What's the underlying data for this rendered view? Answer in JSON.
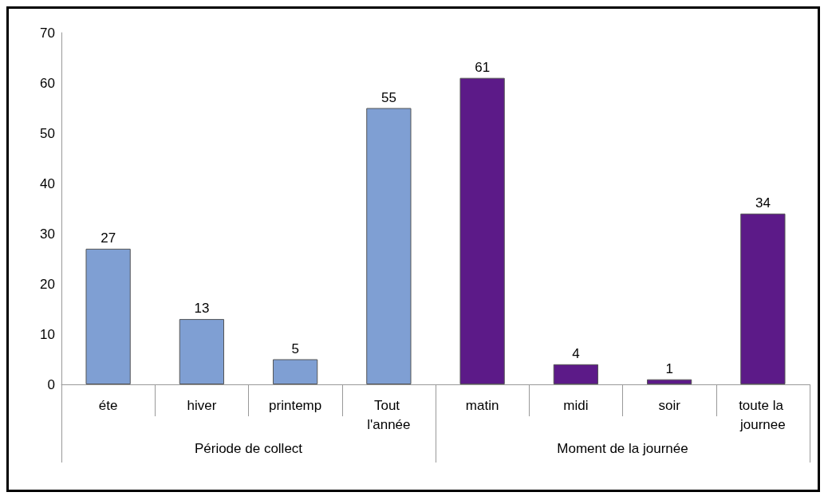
{
  "chart_data": {
    "type": "bar",
    "categories": [
      "éte",
      "hiver",
      "printemp",
      "Tout l'année",
      "matin",
      "midi",
      "soir",
      "toute la journee"
    ],
    "series": [
      {
        "color": "#7f9fd3",
        "values": [
          27,
          13,
          5,
          55,
          null,
          null,
          null,
          null
        ]
      },
      {
        "color": "#5c1a88",
        "values": [
          null,
          null,
          null,
          null,
          61,
          4,
          1,
          34
        ]
      }
    ],
    "annotations": [
      "Période de collect",
      "Moment de la journée"
    ],
    "ylim": [
      0,
      70
    ],
    "yticks": [
      0,
      10,
      20,
      30,
      40,
      50,
      60,
      70
    ],
    "grid": false,
    "data_labels": true
  }
}
